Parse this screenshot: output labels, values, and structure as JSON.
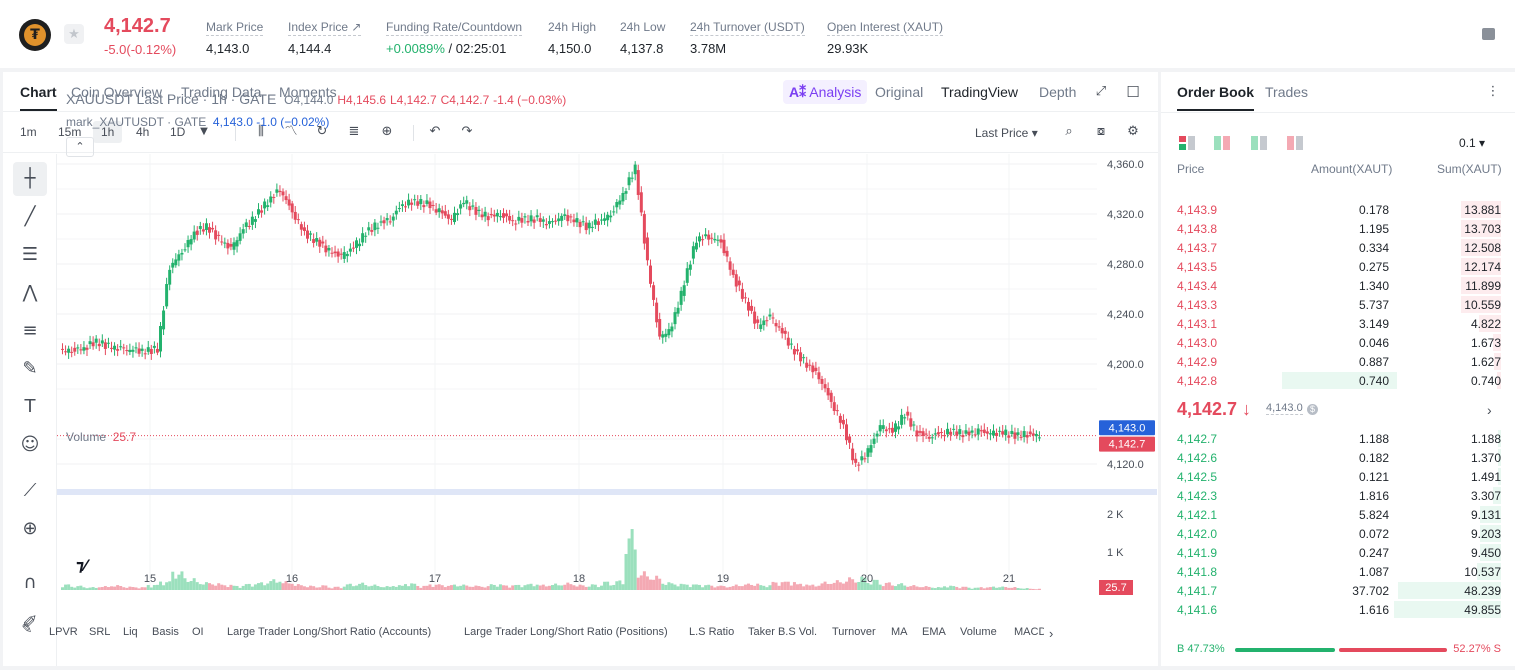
{
  "header": {
    "last_price": "4,142.7",
    "change": "-5.0(-0.12%)",
    "stats": [
      {
        "label": "Mark Price",
        "value": "4,143.0"
      },
      {
        "label": "Index Price ↗",
        "value": "4,144.4"
      },
      {
        "label": "Funding Rate/Countdown",
        "value_green": "+0.0089%",
        "value": " / 02:25:01"
      },
      {
        "label": "24h High",
        "value": "4,150.0"
      },
      {
        "label": "24h Low",
        "value": "4,137.8"
      },
      {
        "label": "24h Turnover (USDT)",
        "value": "3.78M"
      },
      {
        "label": "Open Interest (XAUT)",
        "value": "29.93K"
      }
    ]
  },
  "chart_tabs": [
    "Chart",
    "Coin Overview",
    "Trading Data",
    "Moments"
  ],
  "view_tabs": {
    "ai": "Analysis",
    "original": "Original",
    "tradingview": "TradingView",
    "depth": "Depth"
  },
  "timeframes": [
    "1m",
    "15m",
    "1h",
    "4h",
    "1D"
  ],
  "price_type": "Last Price",
  "legend": {
    "symbol": "XAUUSDT Last Price · 1h · GATE",
    "o": "O4,144.0",
    "h": "H4,145.6",
    "l": "L4,142.7",
    "c": "C4,142.7",
    "chg": "-1.4 (−0.03%)",
    "mark_name": "mark_XAUTUSDT · GATE",
    "mark_val": "4,143.0 -1.0 (−0.02%)"
  },
  "volume_legend": {
    "label": "Volume",
    "value": "25.7"
  },
  "indicators": [
    "LPVR",
    "SRL",
    "Liq",
    "Basis",
    "OI",
    "Large Trader Long/Short Ratio (Accounts)",
    "Large Trader Long/Short Ratio (Positions)",
    "L.S Ratio",
    "Taker B.S Vol.",
    "Turnover",
    "MA",
    "EMA",
    "Volume",
    "MACD"
  ],
  "chart_data": {
    "type": "candlestick",
    "ylim": [
      4100,
      4368
    ],
    "y_ticks": [
      "4,360.0",
      "4,320.0",
      "4,280.0",
      "4,240.0",
      "4,200.0",
      "4,120.0"
    ],
    "y_tick_values": [
      4360,
      4320,
      4280,
      4240,
      4200,
      4120
    ],
    "x_ticks": [
      "15",
      "16",
      "17",
      "18",
      "19",
      "20",
      "21"
    ],
    "mark_price_label": "4,143.0",
    "last_price_label": "4,142.7",
    "mark_price": 4143.0,
    "last_price": 4142.7,
    "vol_ticks": [
      "2 K",
      "1 K"
    ],
    "vol_tick_values": [
      2000,
      1000
    ],
    "vol_last_label": "25.7",
    "close_path": [
      4211,
      4213,
      4218,
      4214,
      4212,
      4211,
      4210,
      4212,
      4278,
      4290,
      4305,
      4310,
      4300,
      4292,
      4308,
      4318,
      4330,
      4340,
      4322,
      4305,
      4298,
      4290,
      4286,
      4293,
      4305,
      4312,
      4316,
      4328,
      4330,
      4328,
      4322,
      4315,
      4330,
      4322,
      4318,
      4320,
      4314,
      4316,
      4316,
      4312,
      4318,
      4315,
      4310,
      4314,
      4320,
      4336,
      4357,
      4280,
      4220,
      4230,
      4265,
      4300,
      4302,
      4298,
      4270,
      4250,
      4230,
      4238,
      4225,
      4210,
      4200,
      4190,
      4170,
      4150,
      4118,
      4130,
      4150,
      4146,
      4160,
      4145,
      4142,
      4145,
      4146,
      4144,
      4146,
      4144,
      4145,
      4143,
      4144,
      4142.7
    ],
    "volumes": [
      120,
      90,
      60,
      80,
      100,
      70,
      60,
      110,
      180,
      380,
      240,
      160,
      140,
      110,
      90,
      130,
      160,
      220,
      180,
      120,
      90,
      100,
      70,
      130,
      150,
      110,
      80,
      100,
      140,
      90,
      120,
      100,
      110,
      90,
      80,
      120,
      100,
      110,
      130,
      110,
      130,
      150,
      110,
      120,
      180,
      200,
      1250,
      380,
      290,
      160,
      130,
      120,
      110,
      90,
      80,
      110,
      130,
      100,
      170,
      180,
      130,
      110,
      170,
      200,
      260,
      280,
      220,
      160,
      140,
      100,
      80,
      60,
      90,
      70,
      50,
      60,
      70,
      60,
      40,
      25.7
    ]
  },
  "orderbook": {
    "tabs": [
      "Order Book",
      "Trades"
    ],
    "precision": "0.1",
    "headers": [
      "Price",
      "Amount(XAUT)",
      "Sum(XAUT)"
    ],
    "asks": [
      {
        "p": "4,143.9",
        "a": "0.178",
        "s": "13.881",
        "d": 0.36
      },
      {
        "p": "4,143.8",
        "a": "1.195",
        "s": "13.703",
        "d": 0.36
      },
      {
        "p": "4,143.7",
        "a": "0.334",
        "s": "12.508",
        "d": 0.36
      },
      {
        "p": "4,143.5",
        "a": "0.275",
        "s": "12.174",
        "d": 0.36
      },
      {
        "p": "4,143.4",
        "a": "1.340",
        "s": "11.899",
        "d": 0.36
      },
      {
        "p": "4,143.3",
        "a": "5.737",
        "s": "10.559",
        "d": 0.36
      },
      {
        "p": "4,143.1",
        "a": "3.149",
        "s": "4.822",
        "d": 0.2
      },
      {
        "p": "4,143.0",
        "a": "0.046",
        "s": "1.673",
        "d": 0.07
      },
      {
        "p": "4,142.9",
        "a": "0.887",
        "s": "1.627",
        "d": 0.06
      },
      {
        "p": "4,142.8",
        "a": "0.740",
        "s": "0.740",
        "d": 0.04,
        "amount_bid": 0.35
      }
    ],
    "mid_price": "4,142.7 ↓",
    "mid_mark": "4,143.0",
    "bids": [
      {
        "p": "4,142.7",
        "a": "1.188",
        "s": "1.188",
        "d": 0.03
      },
      {
        "p": "4,142.6",
        "a": "0.182",
        "s": "1.370",
        "d": 0.03
      },
      {
        "p": "4,142.5",
        "a": "0.121",
        "s": "1.491",
        "d": 0.03
      },
      {
        "p": "4,142.3",
        "a": "1.816",
        "s": "3.307",
        "d": 0.07
      },
      {
        "p": "4,142.1",
        "a": "5.824",
        "s": "9.131",
        "d": 0.19
      },
      {
        "p": "4,142.0",
        "a": "0.072",
        "s": "9.203",
        "d": 0.19
      },
      {
        "p": "4,141.9",
        "a": "0.247",
        "s": "9.450",
        "d": 0.19
      },
      {
        "p": "4,141.8",
        "a": "1.087",
        "s": "10.537",
        "d": 0.22
      },
      {
        "p": "4,141.7",
        "a": "37.702",
        "s": "48.239",
        "d": 0.94
      },
      {
        "p": "4,141.6",
        "a": "1.616",
        "s": "49.855",
        "d": 0.97
      }
    ],
    "buy_ratio": "B 47.73%",
    "sell_ratio": "52.27% S"
  }
}
